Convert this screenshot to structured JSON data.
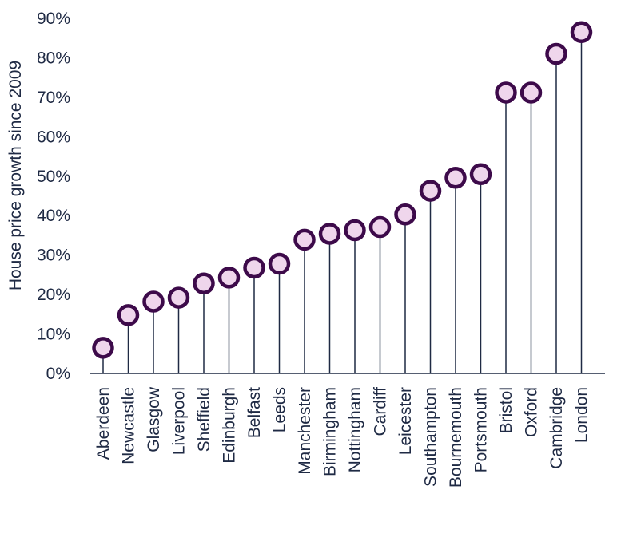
{
  "chart_data": {
    "type": "lollipop",
    "title": "",
    "xlabel": "",
    "ylabel": "House price growth since 2009",
    "ylim": [
      0,
      90
    ],
    "yticks": [
      "0%",
      "10%",
      "20%",
      "30%",
      "40%",
      "50%",
      "60%",
      "70%",
      "80%",
      "90%"
    ],
    "grid": false,
    "categories": [
      "Aberdeen",
      "Newcastle",
      "Glasgow",
      "Liverpool",
      "Sheffield",
      "Edinburgh",
      "Belfast",
      "Leeds",
      "Manchester",
      "Birmingham",
      "Nottingham",
      "Cardiff",
      "Leicester",
      "Southampton",
      "Bournemouth",
      "Portsmouth",
      "Bristol",
      "Oxford",
      "Cambridge",
      "London"
    ],
    "values": [
      6.5,
      14.8,
      18.2,
      19.2,
      22.8,
      24.3,
      26.8,
      27.8,
      33.9,
      35.4,
      36.3,
      37.1,
      40.3,
      46.3,
      49.6,
      50.5,
      71.2,
      71.2,
      81.0,
      86.5
    ],
    "colors": {
      "stem": "#1f2a44",
      "marker_fill": "#efd6ec",
      "marker_stroke": "#3d0a4a",
      "text": "#1f2a44"
    }
  }
}
